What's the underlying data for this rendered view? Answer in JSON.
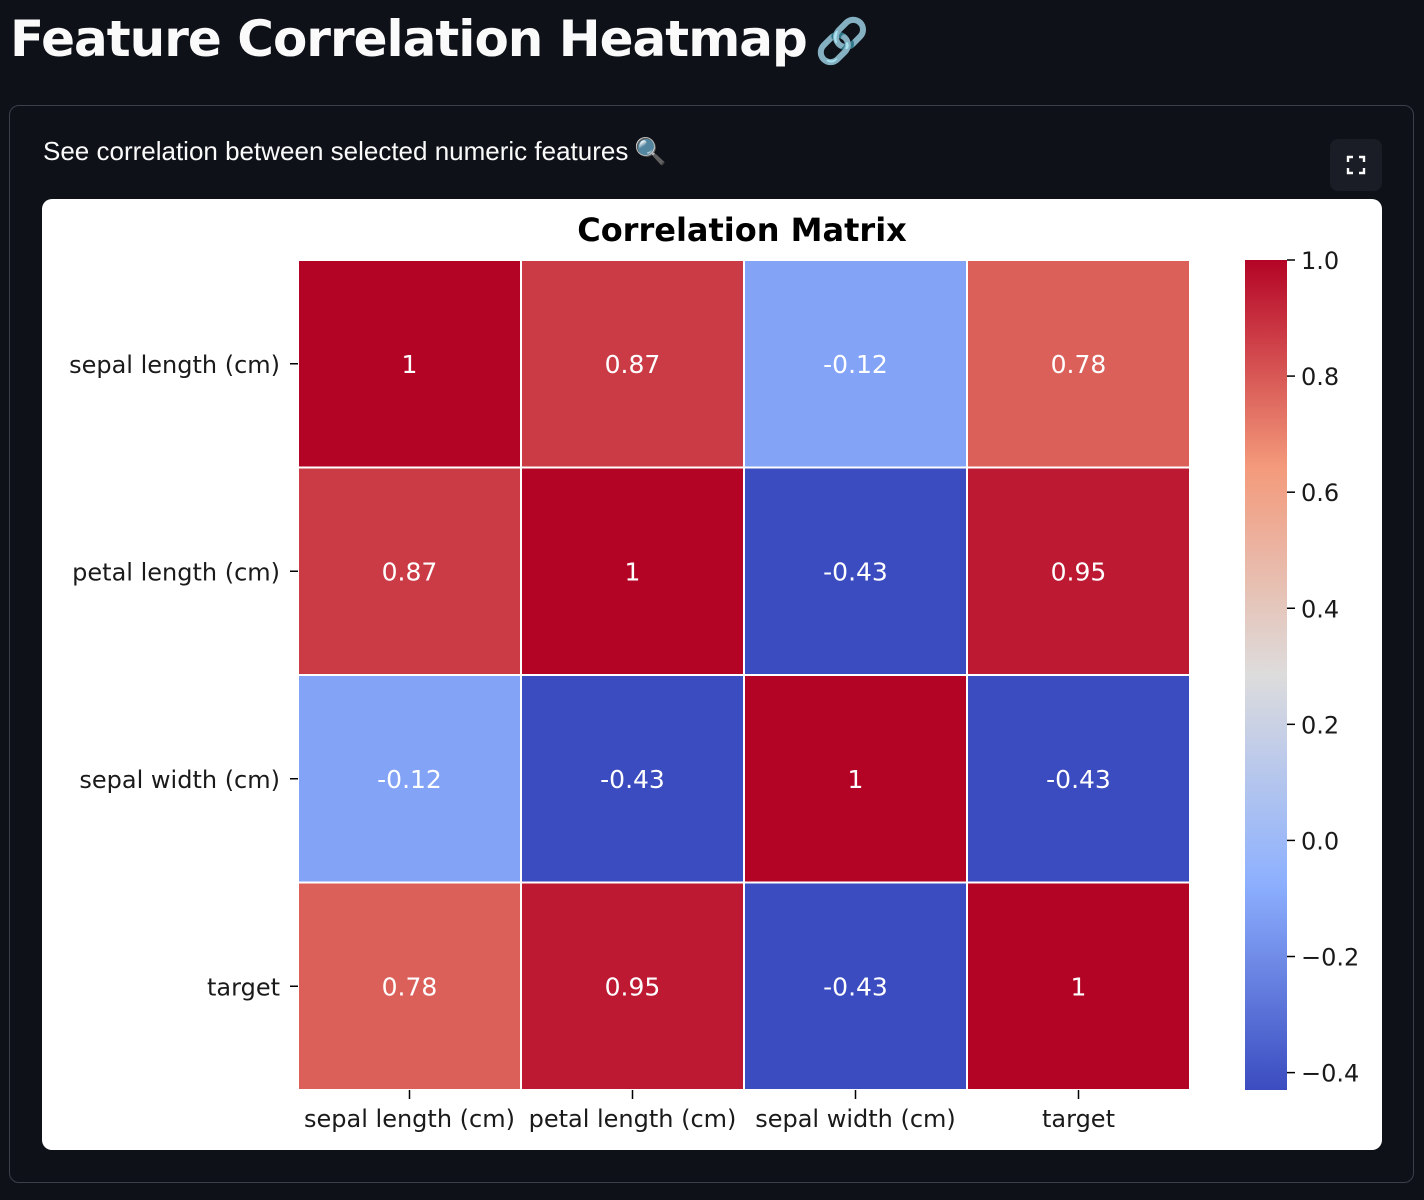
{
  "page": {
    "title": "Feature Correlation Heatmap",
    "title_emoji": "🔗",
    "caption": "See correlation between selected numeric features",
    "caption_emoji": "🔍"
  },
  "icons": {
    "fullscreen": "fullscreen-icon"
  },
  "chart_data": {
    "type": "heatmap",
    "title": "Correlation Matrix",
    "rows": [
      "sepal length (cm)",
      "petal length (cm)",
      "sepal width (cm)",
      "target"
    ],
    "columns": [
      "sepal length (cm)",
      "petal length (cm)",
      "sepal width (cm)",
      "target"
    ],
    "values": [
      [
        1,
        0.87,
        -0.12,
        0.78
      ],
      [
        0.87,
        1,
        -0.43,
        0.95
      ],
      [
        -0.12,
        -0.43,
        1,
        -0.43
      ],
      [
        0.78,
        0.95,
        -0.43,
        1
      ]
    ],
    "cell_labels": [
      [
        "1",
        "0.87",
        "-0.12",
        "0.78"
      ],
      [
        "0.87",
        "1",
        "-0.43",
        "0.95"
      ],
      [
        "-0.12",
        "-0.43",
        "1",
        "-0.43"
      ],
      [
        "0.78",
        "0.95",
        "-0.43",
        "1"
      ]
    ],
    "colormap": "coolwarm",
    "colorbar": {
      "range": [
        -0.43,
        1.0
      ],
      "ticks": [
        1.0,
        0.8,
        0.6,
        0.4,
        0.2,
        0.0,
        -0.2,
        -0.4
      ],
      "tick_labels": [
        "1.0",
        "0.8",
        "0.6",
        "0.4",
        "0.2",
        "0.0",
        "−0.2",
        "−0.4"
      ],
      "placement": "right"
    },
    "xlabel": "",
    "ylabel": ""
  }
}
